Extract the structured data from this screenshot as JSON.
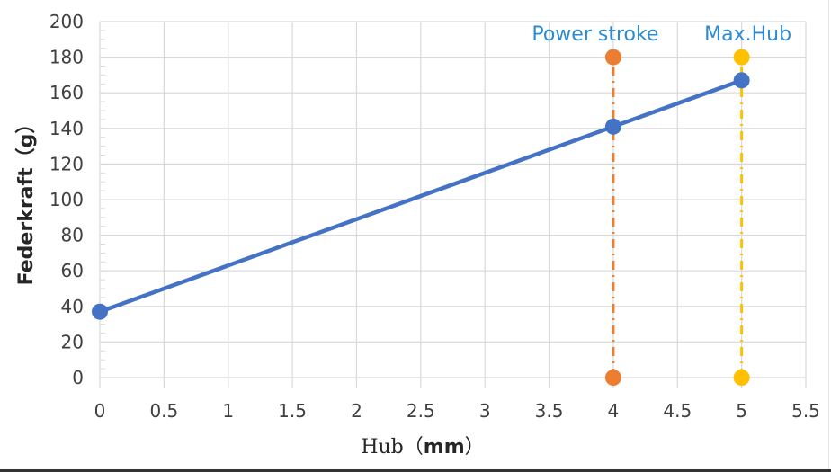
{
  "chart_data": {
    "type": "line",
    "title": "",
    "xlabel": "Hub（mm）",
    "xlabel_prefix": "Hub（",
    "xlabel_bold": "mm",
    "xlabel_suffix": "）",
    "ylabel": "Federkraft（g）",
    "xlim": [
      0,
      5.5
    ],
    "ylim": [
      0,
      200
    ],
    "x_ticks": [
      "0",
      "0.5",
      "1",
      "1.5",
      "2",
      "2.5",
      "3",
      "3.5",
      "4",
      "4.5",
      "5",
      "5.5"
    ],
    "y_ticks": [
      "0",
      "20",
      "40",
      "60",
      "80",
      "100",
      "120",
      "140",
      "160",
      "180",
      "200"
    ],
    "grid": true,
    "series": [
      {
        "name": "Federkraft",
        "color": "#4472c4",
        "style": "solid",
        "x": [
          0,
          4,
          5
        ],
        "y": [
          37,
          141,
          167
        ]
      },
      {
        "name": "Power stroke",
        "color": "#ed7d31",
        "style": "dash-dot",
        "x": [
          4,
          4
        ],
        "y": [
          0,
          180
        ]
      },
      {
        "name": "Max.Hub",
        "color": "#ffc000",
        "style": "dash-dot",
        "x": [
          5,
          5
        ],
        "y": [
          0,
          180
        ]
      }
    ],
    "annotations": [
      {
        "text": "Power stroke",
        "x": 4,
        "y": 190,
        "color": "#2e8bd0"
      },
      {
        "text": "Max.Hub",
        "x": 5,
        "y": 190,
        "color": "#2e8bd0"
      }
    ]
  }
}
